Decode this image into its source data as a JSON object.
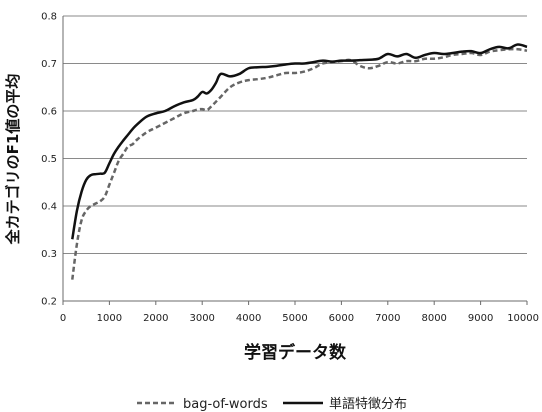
{
  "chart_data": {
    "type": "line",
    "xlabel": "学習データ数",
    "ylabel": "全カテゴリのF1値の平均",
    "xlim": [
      0,
      10000
    ],
    "ylim": [
      0.2,
      0.8
    ],
    "x_ticks": [
      0,
      1000,
      2000,
      3000,
      4000,
      5000,
      6000,
      7000,
      8000,
      9000,
      10000
    ],
    "y_ticks": [
      0.2,
      0.3,
      0.4,
      0.5,
      0.6,
      0.7,
      0.8
    ],
    "x_tick_labels": [
      "0",
      "1000",
      "2000",
      "3000",
      "4000",
      "5000",
      "6000",
      "7000",
      "8000",
      "9000",
      "10000"
    ],
    "y_tick_labels": [
      "0.2",
      "0.3",
      "0.4",
      "0.5",
      "0.6",
      "0.7",
      "0.8"
    ],
    "grid": "horizontal",
    "legend_position": "bottom",
    "series": [
      {
        "name": "bag-of-words",
        "style": "dashed",
        "color": "#666666",
        "x": [
          200,
          300,
          400,
          500,
          600,
          700,
          800,
          900,
          1000,
          1100,
          1200,
          1300,
          1400,
          1500,
          1600,
          1800,
          2000,
          2200,
          2400,
          2600,
          2800,
          2900,
          3000,
          3100,
          3200,
          3400,
          3600,
          3800,
          4000,
          4200,
          4400,
          4600,
          4800,
          5000,
          5200,
          5400,
          5600,
          5800,
          6000,
          6200,
          6400,
          6600,
          6800,
          7000,
          7200,
          7400,
          7600,
          7800,
          8000,
          8200,
          8400,
          8600,
          8800,
          9000,
          9200,
          9400,
          9600,
          9800,
          10000
        ],
        "values": [
          0.245,
          0.32,
          0.37,
          0.39,
          0.4,
          0.405,
          0.41,
          0.42,
          0.445,
          0.47,
          0.495,
          0.51,
          0.525,
          0.53,
          0.54,
          0.555,
          0.565,
          0.575,
          0.585,
          0.595,
          0.6,
          0.603,
          0.604,
          0.602,
          0.61,
          0.63,
          0.65,
          0.66,
          0.665,
          0.667,
          0.67,
          0.675,
          0.68,
          0.68,
          0.683,
          0.69,
          0.7,
          0.703,
          0.705,
          0.707,
          0.695,
          0.69,
          0.695,
          0.703,
          0.7,
          0.705,
          0.705,
          0.71,
          0.71,
          0.713,
          0.718,
          0.72,
          0.722,
          0.718,
          0.725,
          0.728,
          0.73,
          0.73,
          0.727
        ]
      },
      {
        "name": "単語特徴分布",
        "style": "solid",
        "color": "#111111",
        "x": [
          200,
          300,
          400,
          500,
          600,
          700,
          800,
          900,
          1000,
          1100,
          1200,
          1300,
          1400,
          1500,
          1600,
          1800,
          2000,
          2200,
          2400,
          2600,
          2800,
          2900,
          3000,
          3100,
          3200,
          3300,
          3400,
          3600,
          3800,
          4000,
          4200,
          4400,
          4600,
          4800,
          5000,
          5200,
          5400,
          5600,
          5800,
          6000,
          6200,
          6400,
          6600,
          6800,
          7000,
          7200,
          7400,
          7600,
          7800,
          8000,
          8200,
          8400,
          8600,
          8800,
          9000,
          9200,
          9400,
          9600,
          9800,
          10000
        ],
        "values": [
          0.33,
          0.39,
          0.43,
          0.455,
          0.465,
          0.467,
          0.468,
          0.47,
          0.49,
          0.51,
          0.525,
          0.538,
          0.55,
          0.562,
          0.572,
          0.588,
          0.595,
          0.6,
          0.61,
          0.618,
          0.623,
          0.63,
          0.64,
          0.637,
          0.645,
          0.66,
          0.678,
          0.673,
          0.678,
          0.69,
          0.692,
          0.693,
          0.695,
          0.698,
          0.7,
          0.7,
          0.703,
          0.706,
          0.704,
          0.706,
          0.706,
          0.707,
          0.708,
          0.71,
          0.72,
          0.715,
          0.72,
          0.712,
          0.718,
          0.722,
          0.72,
          0.722,
          0.725,
          0.726,
          0.722,
          0.73,
          0.735,
          0.732,
          0.74,
          0.735
        ]
      }
    ]
  }
}
